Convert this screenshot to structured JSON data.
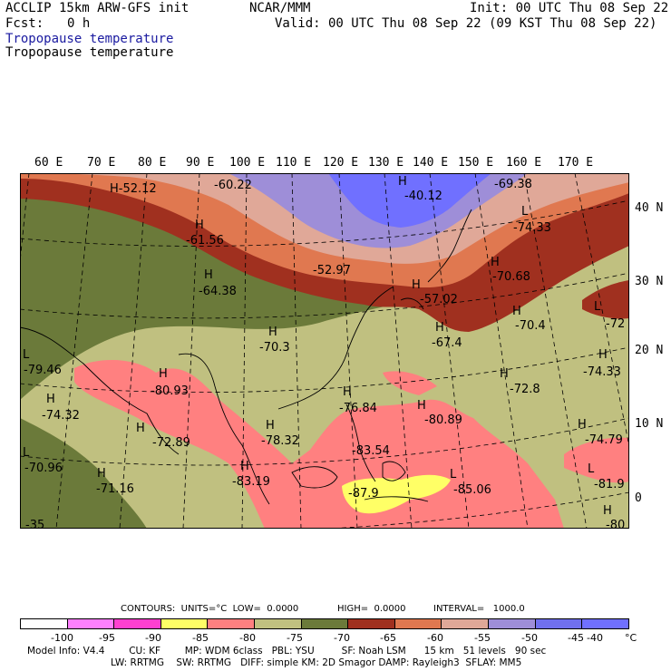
{
  "header": {
    "model": "ACCLIP 15km ARW-GFS init",
    "org": "NCAR/MMM",
    "init": "Init: 00 UTC Thu 08 Sep 22",
    "fcst_label": "Fcst:",
    "fcst_value": "0 h",
    "valid": "Valid: 00 UTC Thu 08 Sep 22 (09 KST Thu 08 Sep 22)",
    "field1": "Tropopause temperature",
    "field2": "Tropopause temperature"
  },
  "map": {
    "lon_labels": [
      "60 E",
      "70 E",
      "80 E",
      "90 E",
      "100 E",
      "110 E",
      "120 E",
      "130 E",
      "140 E",
      "150 E",
      "160 E",
      "170 E"
    ],
    "lat_labels": [
      "40 N",
      "30 N",
      "20 N",
      "10 N",
      "0"
    ],
    "highs": [
      {
        "letter": "H",
        "value": "-52.12"
      },
      {
        "letter": "H",
        "value": "-60.22"
      },
      {
        "letter": "H",
        "value": "-40.12"
      },
      {
        "letter": "H",
        "value": "-69.38"
      },
      {
        "letter": "H",
        "value": "-61.56"
      },
      {
        "letter": "H",
        "value": "-64.38"
      },
      {
        "letter": "H",
        "value": "-52.97"
      },
      {
        "letter": "H",
        "value": "-57.02"
      },
      {
        "letter": "H",
        "value": "-70.68"
      },
      {
        "letter": "H",
        "value": "-70.4"
      },
      {
        "letter": "H",
        "value": "-67.4"
      },
      {
        "letter": "H",
        "value": "-70.3"
      },
      {
        "letter": "H",
        "value": "-72.8"
      },
      {
        "letter": "H",
        "value": "-74.33"
      },
      {
        "letter": "H",
        "value": "-80.93"
      },
      {
        "letter": "H",
        "value": "-74.32"
      },
      {
        "letter": "H",
        "value": "-76.84"
      },
      {
        "letter": "H",
        "value": "-80.89"
      },
      {
        "letter": "H",
        "value": "-72.89"
      },
      {
        "letter": "H",
        "value": "-78.32"
      },
      {
        "letter": "H",
        "value": "-74.79"
      },
      {
        "letter": "H",
        "value": "-71.16"
      },
      {
        "letter": "H",
        "value": "-83.19"
      },
      {
        "letter": "H",
        "value": "-83.54"
      },
      {
        "letter": "H",
        "value": "-80"
      }
    ],
    "lows": [
      {
        "letter": "L",
        "value": "-74.33"
      },
      {
        "letter": "L",
        "value": "-72"
      },
      {
        "letter": "L",
        "value": "-79.46"
      },
      {
        "letter": "L",
        "value": "-70.96"
      },
      {
        "letter": "L",
        "value": "-87.9"
      },
      {
        "letter": "L",
        "value": "-85.06"
      },
      {
        "letter": "L",
        "value": "-81.9"
      },
      {
        "letter": "L",
        "value": "-35"
      }
    ]
  },
  "contours": {
    "units": "CONTOURS:  UNITS=°C  LOW=  0.0000",
    "high": "HIGH=  0.0000",
    "interval": "INTERVAL=   1000.0"
  },
  "colorbar": {
    "colors": [
      "#ffffff",
      "#ff80ff",
      "#ff40d0",
      "#ffff66",
      "#ff8080",
      "#c0c080",
      "#6b7a3a",
      "#a0301f",
      "#e07850",
      "#e0a898",
      "#9e8ed8",
      "#7070ee",
      "#7070ff"
    ],
    "ticks": [
      "-100",
      "-95",
      "-90",
      "-85",
      "-80",
      "-75",
      "-70",
      "-65",
      "-60",
      "-55",
      "-50",
      "-45",
      "-40",
      "°C"
    ]
  },
  "info": {
    "line1": "Model Info: V4.4        CU: KF        MP: WDM 6class   PBL: YSU         SF: Noah LSM      15 km   51 levels   90 sec",
    "line2": "LW: RRTMG    SW: RRTMG   DIFF: simple KM: 2D Smagor DAMP: Rayleigh3  SFLAY: MM5"
  }
}
